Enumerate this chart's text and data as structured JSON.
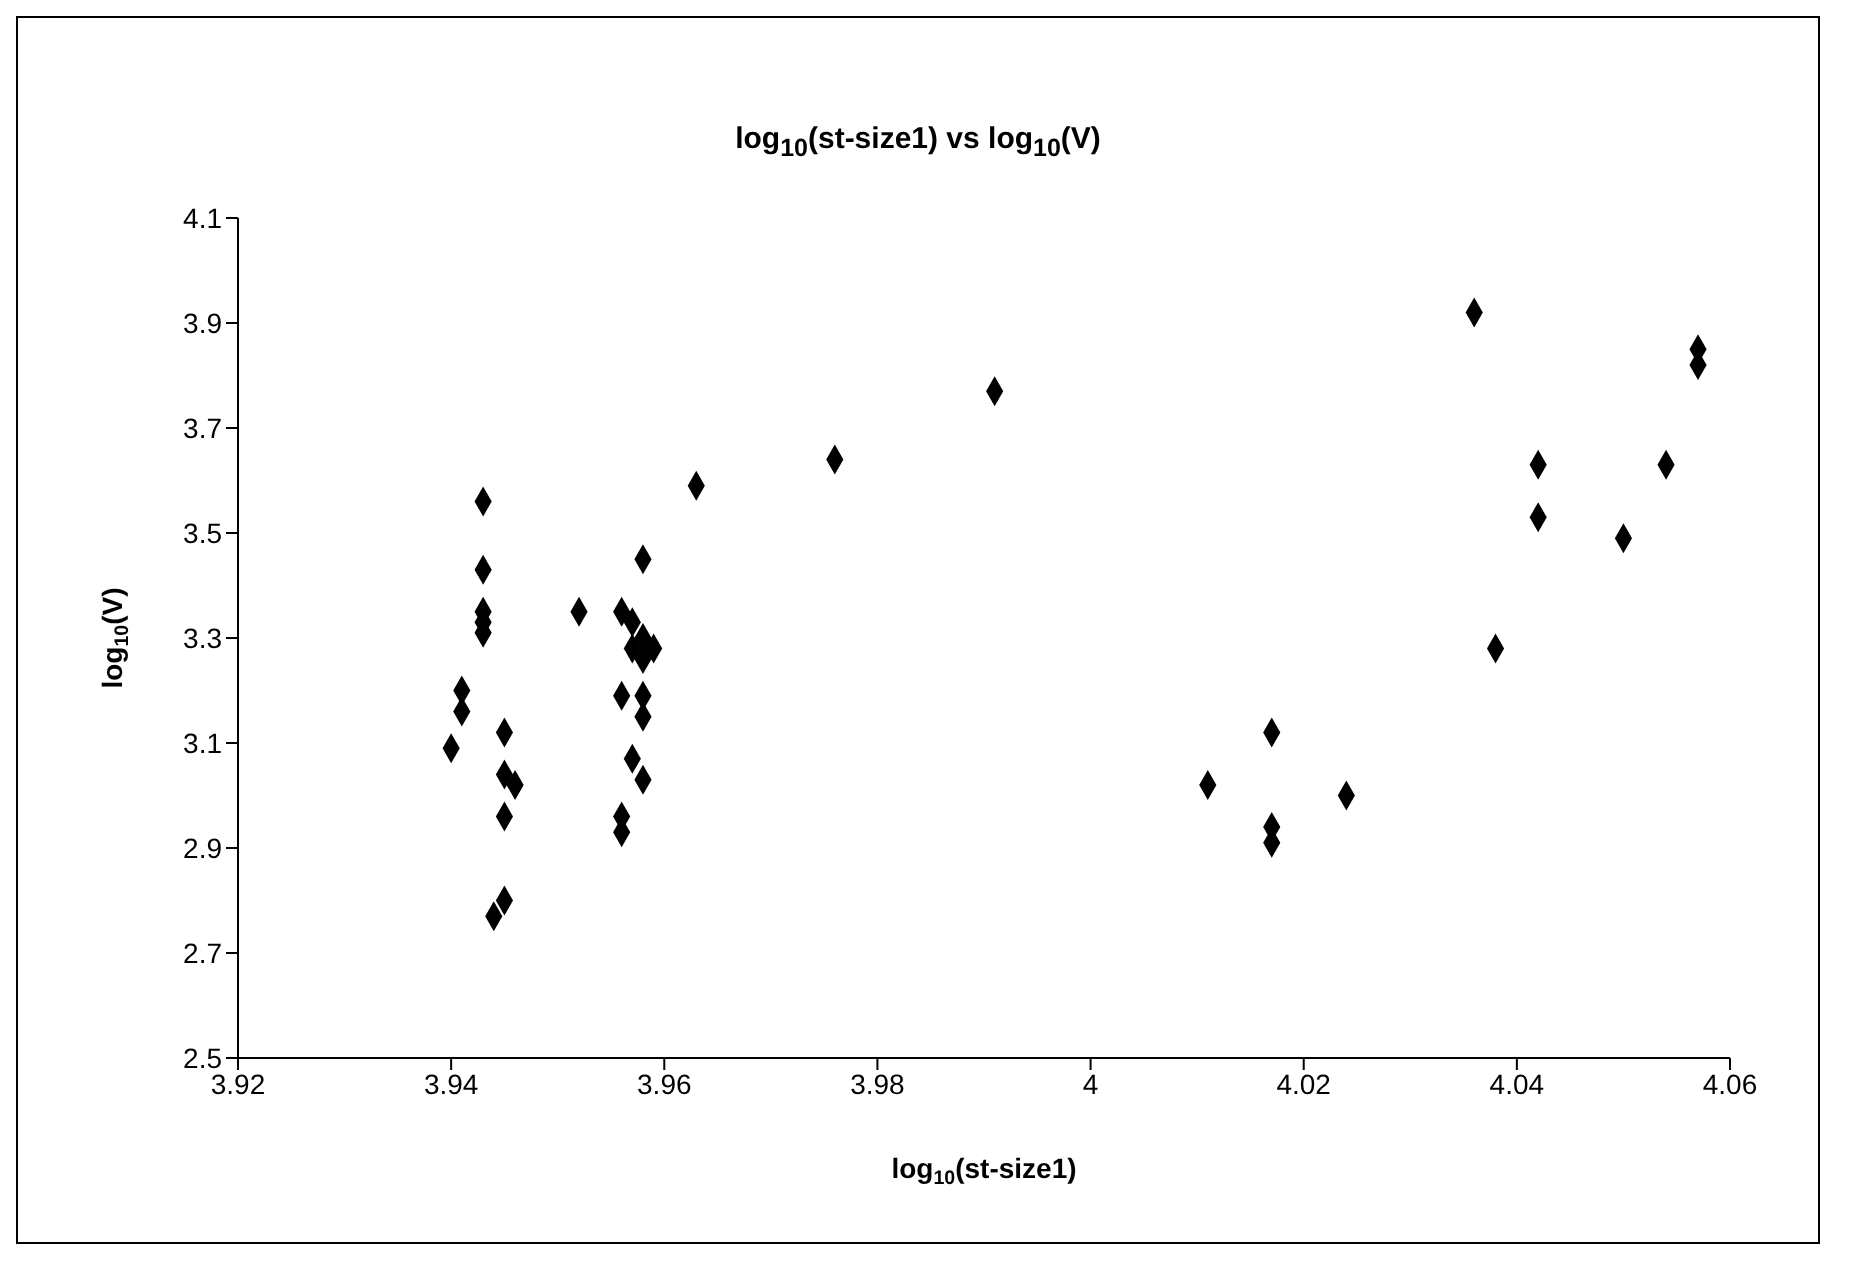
{
  "chart_data": {
    "type": "scatter",
    "title": "log$_{10}$(st-size1) vs log$_{10}$(V)",
    "xlabel": "log$_{10}$(st-size1)",
    "ylabel": "log$_{10}$(V)",
    "xlim": [
      3.92,
      4.06
    ],
    "xticks": [
      3.92,
      3.94,
      3.96,
      3.98,
      4,
      4.02,
      4.04,
      4.06
    ],
    "ylim": [
      2.5,
      4.1
    ],
    "yticks": [
      2.5,
      2.7,
      2.9,
      3.1,
      3.3,
      3.5,
      3.7,
      3.9,
      4.1
    ],
    "grid": false,
    "legend": false,
    "marker": "diamond",
    "series": [
      {
        "color": "#000000",
        "x": [
          3.94,
          3.941,
          3.941,
          3.943,
          3.943,
          3.943,
          3.943,
          3.943,
          3.945,
          3.945,
          3.946,
          3.945,
          3.945,
          3.944,
          3.952,
          3.956,
          3.956,
          3.956,
          3.956,
          3.957,
          3.957,
          3.958,
          3.958,
          3.959,
          3.957,
          3.958,
          3.958,
          3.958,
          3.958,
          3.963,
          3.976,
          3.991,
          4.011,
          4.017,
          4.017,
          4.017,
          4.024,
          4.036,
          4.038,
          4.042,
          4.042,
          4.05,
          4.054,
          4.057,
          4.057
        ],
        "values": [
          3.09,
          3.2,
          3.16,
          3.56,
          3.43,
          3.35,
          3.33,
          3.31,
          3.12,
          3.04,
          3.02,
          2.96,
          2.8,
          2.77,
          3.35,
          3.35,
          3.19,
          2.96,
          2.93,
          3.33,
          3.28,
          3.3,
          3.26,
          3.28,
          3.07,
          3.19,
          3.15,
          3.03,
          3.45,
          3.59,
          3.64,
          3.77,
          3.02,
          3.12,
          2.94,
          2.91,
          3.0,
          3.92,
          3.28,
          3.63,
          3.53,
          3.49,
          3.63,
          3.85,
          3.82
        ]
      }
    ]
  }
}
